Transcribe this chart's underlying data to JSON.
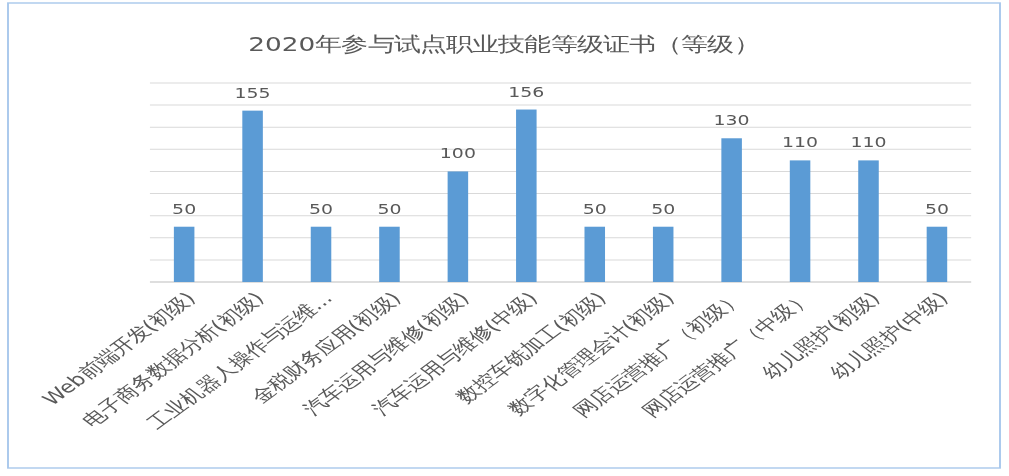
{
  "chart_data": {
    "type": "bar",
    "title": "2020年参与试点职业技能等级证书（等级）",
    "categories": [
      "Web前端开发(初级)",
      "电子商务数据分析(初级)",
      "工业机器人操作与运维...",
      "金税财务应用(初级)",
      "汽车运用与维修(初级)",
      "汽车运用与维修(中级)",
      "数控车铣加工(初级)",
      "数字化管理会计(初级)",
      "网店运营推广（初级）",
      "网店运营推广（中级）",
      "幼儿照护(初级)",
      "幼儿照护(中级)"
    ],
    "values": [
      50,
      155,
      50,
      50,
      100,
      156,
      50,
      50,
      130,
      110,
      110,
      50
    ],
    "color": "#5b9bd5",
    "ylim": [
      0,
      180
    ],
    "yticks": [
      {
        "value": 0,
        "label": null
      },
      {
        "value": 20,
        "label": null
      },
      {
        "value": 40,
        "label": null
      },
      {
        "value": 60,
        "label": null
      },
      {
        "value": 80,
        "label": null
      },
      {
        "value": 100,
        "label": null
      },
      {
        "value": 120,
        "label": null
      },
      {
        "value": 140,
        "label": null
      },
      {
        "value": 160,
        "label": null
      },
      {
        "value": 180,
        "label": null
      }
    ],
    "grid": "y",
    "data_labels": true,
    "tick_labels": "x"
  }
}
